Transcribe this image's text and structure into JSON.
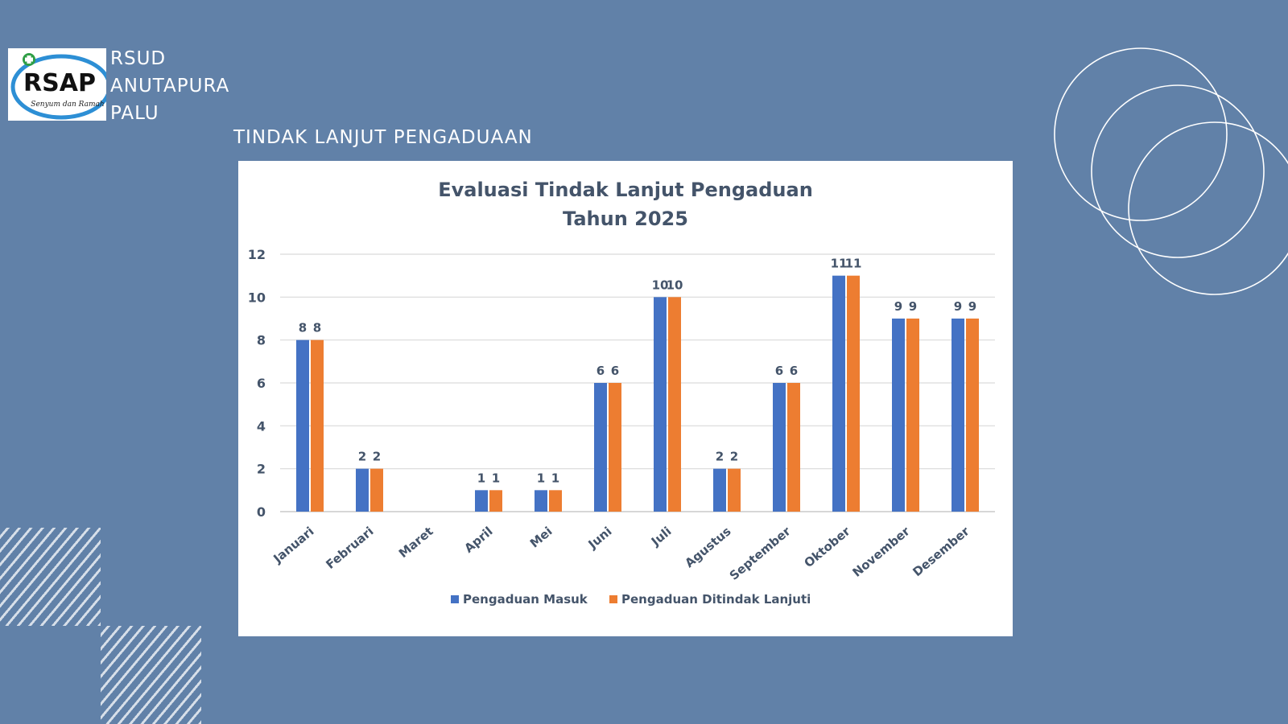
{
  "header": {
    "logo_text": "RSAP",
    "logo_tagline": "Senyum dan Ramah",
    "name_lines": [
      "RSUD",
      "ANUTAPURA",
      "PALU"
    ],
    "page_title": "TINDAK LANJUT PENGADUAAN"
  },
  "colors": {
    "background": "#6181a8",
    "series_1": "#4472c4",
    "series_2": "#ed7d31",
    "chart_text": "#44546a"
  },
  "chart_data": {
    "type": "bar",
    "title": "Evaluasi Tindak Lanjut Pengaduan",
    "subtitle": "Tahun 2025",
    "categories": [
      "Januari",
      "Februari",
      "Maret",
      "April",
      "Mei",
      "Juni",
      "Juli",
      "Agustus",
      "September",
      "Oktober",
      "November",
      "Desember"
    ],
    "series": [
      {
        "name": "Pengaduan Masuk",
        "color": "#4472c4",
        "values": [
          8,
          2,
          null,
          1,
          1,
          6,
          10,
          2,
          6,
          11,
          9,
          9
        ]
      },
      {
        "name": "Pengaduan Ditindak Lanjuti",
        "color": "#ed7d31",
        "values": [
          8,
          2,
          null,
          1,
          1,
          6,
          10,
          2,
          6,
          11,
          9,
          9
        ]
      }
    ],
    "ylim": [
      0,
      12
    ],
    "yticks": [
      "0",
      "2",
      "4",
      "6",
      "8",
      "10",
      "12"
    ],
    "grid": true,
    "legend": "bottom",
    "data_labels": true
  }
}
